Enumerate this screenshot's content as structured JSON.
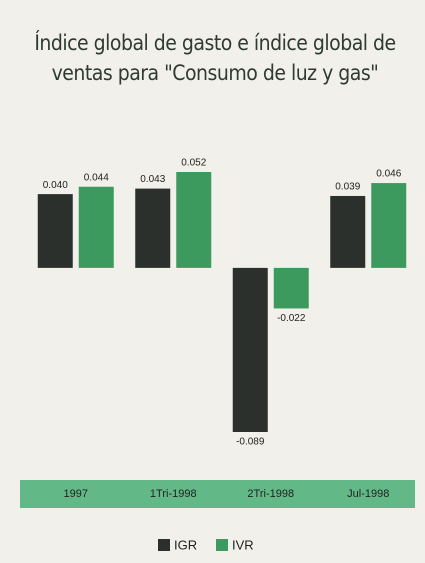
{
  "chart_data": {
    "type": "bar",
    "title": "Índice global de gasto e índice global de ventas para \"Consumo de luz y gas\"",
    "categories": [
      "1997",
      "1Tri-1998",
      "2Tri-1998",
      "Jul-1998"
    ],
    "series": [
      {
        "name": "IGR",
        "color": "#2b302c",
        "values": [
          0.04,
          0.043,
          -0.089,
          0.039
        ],
        "value_labels": [
          "0.040",
          "0.043",
          "-0.089",
          "0.039"
        ]
      },
      {
        "name": "IVR",
        "color": "#3d9a5f",
        "values": [
          0.044,
          0.052,
          -0.022,
          0.046
        ],
        "value_labels": [
          "0.044",
          "0.052",
          "-0.022",
          "0.046"
        ]
      }
    ],
    "legend": "bottom"
  }
}
